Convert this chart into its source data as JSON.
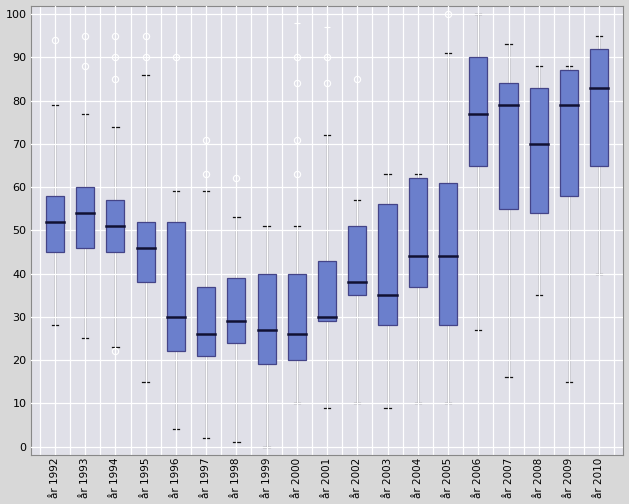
{
  "years": [
    "år 1992",
    "år 1993",
    "år 1994",
    "år 1995",
    "år 1996",
    "år 1997",
    "år 1998",
    "år 1999",
    "år 2000",
    "år 2001",
    "år 2002",
    "år 2003",
    "år 2004",
    "år 2005",
    "år 2006",
    "år 2007",
    "år 2008",
    "år 2009",
    "år 2010"
  ],
  "boxes": [
    {
      "whislo": 28,
      "q1": 45,
      "med": 52,
      "q3": 58,
      "whishi": 79,
      "fliers_o": [
        94
      ],
      "fliers_plus": []
    },
    {
      "whislo": 25,
      "q1": 46,
      "med": 54,
      "q3": 60,
      "whishi": 77,
      "fliers_o": [
        88,
        95
      ],
      "fliers_plus": []
    },
    {
      "whislo": 23,
      "q1": 45,
      "med": 51,
      "q3": 57,
      "whishi": 74,
      "fliers_o": [
        85,
        90,
        95,
        22
      ],
      "fliers_plus": []
    },
    {
      "whislo": 15,
      "q1": 38,
      "med": 46,
      "q3": 52,
      "whishi": 86,
      "fliers_o": [
        90,
        95
      ],
      "fliers_plus": []
    },
    {
      "whislo": 4,
      "q1": 22,
      "med": 30,
      "q3": 52,
      "whishi": 59,
      "fliers_o": [
        90
      ],
      "fliers_plus": []
    },
    {
      "whislo": 2,
      "q1": 21,
      "med": 26,
      "q3": 37,
      "whishi": 59,
      "fliers_o": [
        63,
        71
      ],
      "fliers_plus": []
    },
    {
      "whislo": 1,
      "q1": 24,
      "med": 29,
      "q3": 39,
      "whishi": 53,
      "fliers_o": [
        62
      ],
      "fliers_plus": []
    },
    {
      "whislo": 0,
      "q1": 19,
      "med": 27,
      "q3": 40,
      "whishi": 51,
      "fliers_o": [],
      "fliers_plus": []
    },
    {
      "whislo": 10,
      "q1": 20,
      "med": 26,
      "q3": 40,
      "whishi": 51,
      "fliers_o": [
        63,
        71,
        84,
        90
      ],
      "fliers_plus": [
        98,
        100
      ]
    },
    {
      "whislo": 9,
      "q1": 29,
      "med": 30,
      "q3": 43,
      "whishi": 72,
      "fliers_o": [
        84,
        90
      ],
      "fliers_plus": [
        97,
        100
      ]
    },
    {
      "whislo": 10,
      "q1": 35,
      "med": 38,
      "q3": 51,
      "whishi": 57,
      "fliers_o": [
        85
      ],
      "fliers_plus": []
    },
    {
      "whislo": 9,
      "q1": 28,
      "med": 35,
      "q3": 56,
      "whishi": 63,
      "fliers_o": [],
      "fliers_plus": []
    },
    {
      "whislo": 10,
      "q1": 37,
      "med": 44,
      "q3": 62,
      "whishi": 63,
      "fliers_o": [],
      "fliers_plus": []
    },
    {
      "whislo": 10,
      "q1": 28,
      "med": 44,
      "q3": 61,
      "whishi": 91,
      "fliers_o": [
        100
      ],
      "fliers_plus": []
    },
    {
      "whislo": 27,
      "q1": 65,
      "med": 77,
      "q3": 90,
      "whishi": 100,
      "fliers_o": [],
      "fliers_plus": []
    },
    {
      "whislo": 16,
      "q1": 55,
      "med": 79,
      "q3": 84,
      "whishi": 93,
      "fliers_o": [],
      "fliers_plus": []
    },
    {
      "whislo": 35,
      "q1": 54,
      "med": 70,
      "q3": 83,
      "whishi": 88,
      "fliers_o": [],
      "fliers_plus": []
    },
    {
      "whislo": 15,
      "q1": 58,
      "med": 79,
      "q3": 87,
      "whishi": 88,
      "fliers_o": [],
      "fliers_plus": []
    },
    {
      "whislo": 40,
      "q1": 65,
      "med": 83,
      "q3": 92,
      "whishi": 95,
      "fliers_o": [],
      "fliers_plus": []
    }
  ],
  "box_facecolor": "#6B7FCC",
  "box_edgecolor": "#444488",
  "whisker_color": "#111111",
  "median_color": "#111133",
  "flier_color_o": "white",
  "flier_color_plus": "white",
  "background_color": "#D8D8D8",
  "plot_background": "#E0E0E8",
  "grid_color": "#FFFFFF",
  "ylim": [
    -2,
    102
  ],
  "yticks": [
    0,
    10,
    20,
    30,
    40,
    50,
    60,
    70,
    80,
    90,
    100
  ],
  "box_width": 0.6
}
